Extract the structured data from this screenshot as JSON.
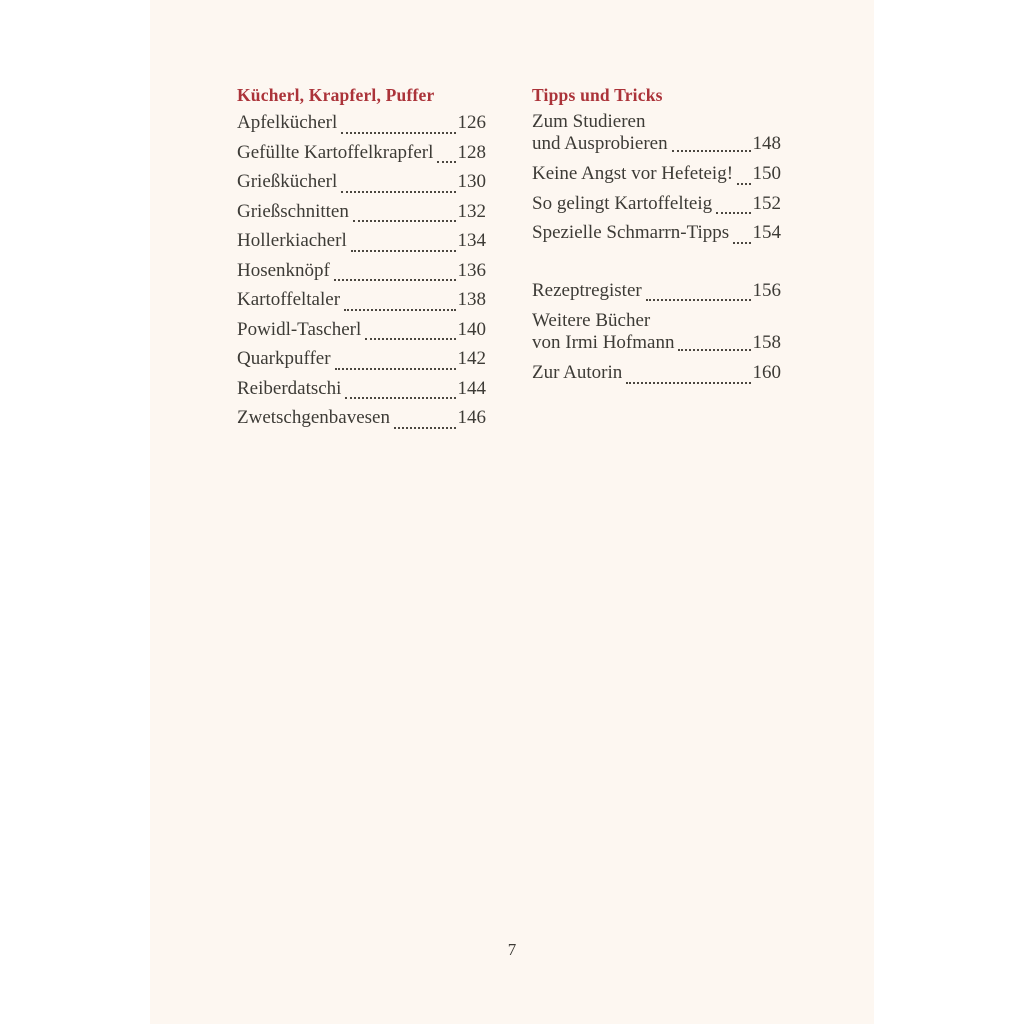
{
  "colors": {
    "outer_background": "#ffffff",
    "page_background": "#fdf7f1",
    "heading_accent": "#ab3339",
    "body_text": "#3d3b36"
  },
  "left_column": {
    "heading": "Kücherl, Krapferl, Puffer",
    "items": [
      {
        "label": "Apfelkücherl",
        "page": "126"
      },
      {
        "label": "Gefüllte Kartoffelkrapferl",
        "page": "128"
      },
      {
        "label": "Grießkücherl",
        "page": "130"
      },
      {
        "label": "Grießschnitten",
        "page": "132"
      },
      {
        "label": "Hollerkiacherl",
        "page": "134"
      },
      {
        "label": "Hosenknöpf",
        "page": "136"
      },
      {
        "label": "Kartoffeltaler",
        "page": "138"
      },
      {
        "label": "Powidl-Tascherl",
        "page": "140"
      },
      {
        "label": "Quarkpuffer",
        "page": "142"
      },
      {
        "label": "Reiberdatschi",
        "page": "144"
      },
      {
        "label": "Zwetschgenbavesen",
        "page": "146"
      }
    ]
  },
  "right_column": {
    "heading": "Tipps und Tricks",
    "items": [
      {
        "label_line1": "Zum Studieren",
        "label_line2": "und Ausprobieren",
        "page": "148"
      },
      {
        "label": "Keine Angst vor Hefeteig!",
        "page": "150"
      },
      {
        "label": "So gelingt Kartoffelteig",
        "page": "152"
      },
      {
        "label": "Spezielle Schmarrn-Tipps",
        "page": "154"
      },
      {
        "label": "Rezeptregister",
        "page": "156"
      },
      {
        "label_line1": "Weitere Bücher",
        "label_line2": "von Irmi Hofmann",
        "page": "158"
      },
      {
        "label": "Zur Autorin",
        "page": "160"
      }
    ]
  },
  "footer": {
    "page_number": "7"
  }
}
